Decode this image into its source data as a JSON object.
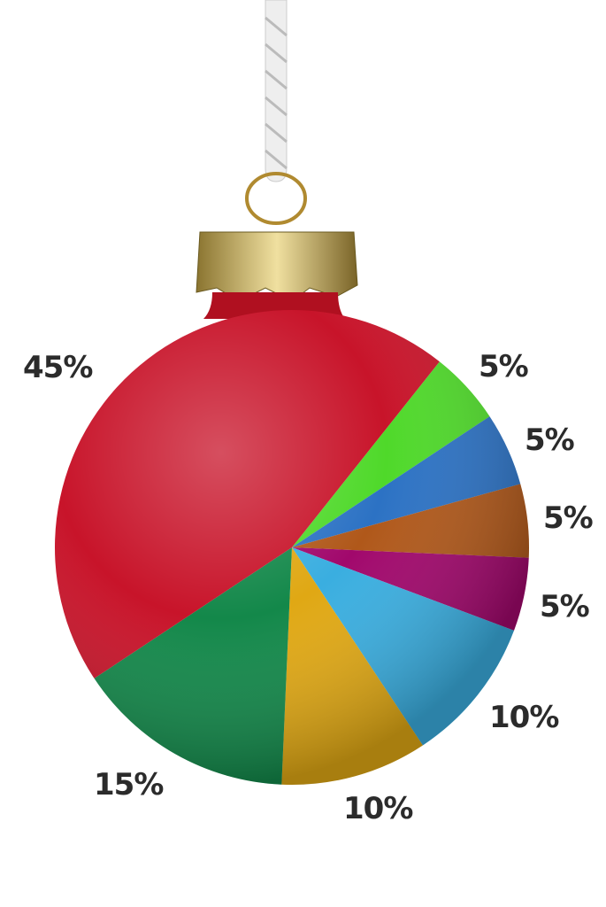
{
  "chart_data": {
    "type": "pie",
    "title": "",
    "start_angle_deg": 38.5,
    "direction": "clockwise",
    "slices": [
      {
        "value": 5,
        "label": "5%",
        "color": "#4fd92a"
      },
      {
        "value": 5,
        "label": "5%",
        "color": "#2c72c4"
      },
      {
        "value": 5,
        "label": "5%",
        "color": "#b0581a"
      },
      {
        "value": 5,
        "label": "5%",
        "color": "#a1086c"
      },
      {
        "value": 10,
        "label": "10%",
        "color": "#3aaee0"
      },
      {
        "value": 10,
        "label": "10%",
        "color": "#e0a814"
      },
      {
        "value": 15,
        "label": "15%",
        "color": "#13884a"
      },
      {
        "value": 45,
        "label": "45%",
        "color": "#c8142a"
      }
    ]
  }
}
